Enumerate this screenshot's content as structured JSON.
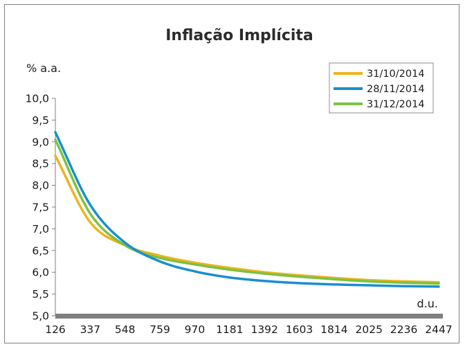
{
  "chart_data": {
    "type": "line",
    "title": "Inflação Implícita",
    "ylabel": "% a.a.",
    "xlabel": "d.u.",
    "ylim": [
      5.0,
      10.0
    ],
    "yticks": [
      "5,0",
      "5,5",
      "6,0",
      "6,5",
      "7,0",
      "7,5",
      "8,0",
      "8,5",
      "9,0",
      "9,5",
      "10,0"
    ],
    "xticks": [
      "126",
      "337",
      "548",
      "759",
      "970",
      "1181",
      "1392",
      "1603",
      "1814",
      "2025",
      "2236",
      "2447"
    ],
    "x": [
      126,
      337,
      548,
      759,
      970,
      1181,
      1392,
      1603,
      1814,
      2025,
      2236,
      2447
    ],
    "grid": false,
    "legend_position": "top-right",
    "series": [
      {
        "name": "31/10/2014",
        "color": "#f0b21e",
        "values": [
          8.68,
          7.15,
          6.62,
          6.38,
          6.22,
          6.1,
          6.0,
          5.93,
          5.87,
          5.82,
          5.79,
          5.77
        ]
      },
      {
        "name": "28/11/2014",
        "color": "#1a8ed0",
        "values": [
          9.22,
          7.55,
          6.68,
          6.25,
          6.02,
          5.88,
          5.8,
          5.75,
          5.72,
          5.7,
          5.68,
          5.67
        ]
      },
      {
        "name": "31/12/2014",
        "color": "#7cc242",
        "values": [
          9.05,
          7.35,
          6.62,
          6.33,
          6.18,
          6.06,
          5.97,
          5.9,
          5.84,
          5.79,
          5.76,
          5.74
        ]
      }
    ]
  }
}
